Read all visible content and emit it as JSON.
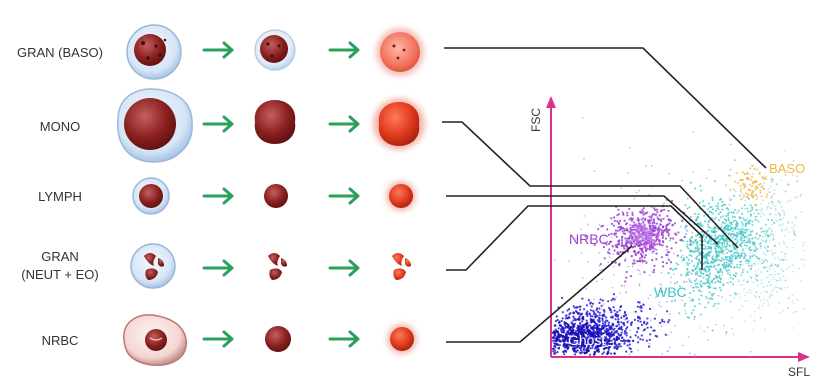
{
  "rows": [
    {
      "label": "GRAN (BASO)",
      "label2": ""
    },
    {
      "label": "MONO",
      "label2": ""
    },
    {
      "label": "LYMPH",
      "label2": ""
    },
    {
      "label": "GRAN",
      "label2": "(NEUT + EO)"
    },
    {
      "label": "NRBC",
      "label2": ""
    }
  ],
  "plot": {
    "y_axis_label": "FSC",
    "x_axis_label": "SFL",
    "clusters": {
      "baso": "BASO",
      "nrbc": "NRBC",
      "wbc": "WBC",
      "ghost": "Ghost"
    }
  },
  "colors": {
    "arrow": "#2aa05a",
    "axis": "#d9328a",
    "connector": "#222222",
    "ghost": "#2a1fd6",
    "nrbc": "#9b3fd0",
    "wbc": "#3fc7c7",
    "baso": "#f0b840",
    "cell_dark": "#8a1f1f",
    "cell_bright": "#e03a1e"
  }
}
